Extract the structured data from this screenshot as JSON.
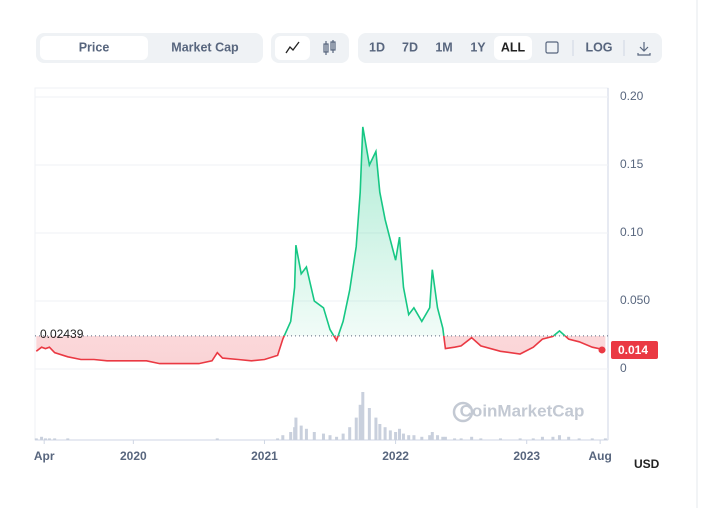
{
  "toolbar": {
    "tabs": [
      "Price",
      "Market Cap"
    ],
    "ranges": [
      "1D",
      "7D",
      "1M",
      "1Y",
      "ALL"
    ],
    "scale": "LOG",
    "currency": "USD",
    "watermark": "CoinMarketCap"
  },
  "chart_data": {
    "type": "line",
    "x": [
      2019.26,
      2019.3,
      2019.33,
      2019.36,
      2019.4,
      2019.5,
      2019.6,
      2019.7,
      2019.8,
      2019.9,
      2020.0,
      2020.1,
      2020.2,
      2020.3,
      2020.4,
      2020.5,
      2020.6,
      2020.64,
      2020.68,
      2020.8,
      2020.9,
      2021.0,
      2021.1,
      2021.14,
      2021.2,
      2021.23,
      2021.24,
      2021.28,
      2021.32,
      2021.38,
      2021.45,
      2021.5,
      2021.55,
      2021.6,
      2021.65,
      2021.7,
      2021.73,
      2021.75,
      2021.8,
      2021.85,
      2021.88,
      2021.92,
      2021.96,
      2022.0,
      2022.03,
      2022.06,
      2022.1,
      2022.14,
      2022.2,
      2022.26,
      2022.28,
      2022.32,
      2022.36,
      2022.38,
      2022.45,
      2022.5,
      2022.58,
      2022.65,
      2022.8,
      2022.95,
      2023.05,
      2023.12,
      2023.2,
      2023.25,
      2023.32,
      2023.4,
      2023.5,
      2023.6
    ],
    "series": [
      {
        "name": "Price",
        "color": "#16c784",
        "values": [
          0.013,
          0.016,
          0.015,
          0.016,
          0.012,
          0.009,
          0.007,
          0.007,
          0.006,
          0.006,
          0.006,
          0.006,
          0.004,
          0.004,
          0.004,
          0.004,
          0.006,
          0.012,
          0.008,
          0.007,
          0.006,
          0.007,
          0.01,
          0.022,
          0.035,
          0.06,
          0.091,
          0.07,
          0.075,
          0.05,
          0.045,
          0.029,
          0.021,
          0.035,
          0.058,
          0.09,
          0.13,
          0.178,
          0.15,
          0.16,
          0.13,
          0.11,
          0.095,
          0.08,
          0.097,
          0.06,
          0.04,
          0.045,
          0.035,
          0.045,
          0.073,
          0.045,
          0.03,
          0.015,
          0.016,
          0.017,
          0.023,
          0.017,
          0.013,
          0.011,
          0.016,
          0.022,
          0.024,
          0.028,
          0.022,
          0.02,
          0.016,
          0.014
        ]
      }
    ],
    "volume": [
      1,
      2,
      1,
      1,
      1,
      1,
      0,
      0,
      0,
      0,
      0,
      0,
      0,
      0,
      0,
      0,
      0,
      1,
      0,
      0,
      0,
      0,
      1,
      3,
      5,
      8,
      14,
      9,
      7,
      5,
      4,
      3,
      2,
      4,
      8,
      14,
      22,
      30,
      20,
      14,
      10,
      8,
      6,
      5,
      7,
      4,
      3,
      3,
      2,
      3,
      5,
      3,
      2,
      2,
      1,
      1,
      2,
      1,
      1,
      1,
      1,
      2,
      2,
      3,
      2,
      1,
      1,
      1
    ],
    "below_color": "#ea3943",
    "baseline": {
      "value": 0.02439,
      "label": "0.02439"
    },
    "last": {
      "value": 0.014,
      "label": "0.014"
    },
    "xlim": [
      2019.25,
      2023.62
    ],
    "xticks": [
      {
        "value": 2019.32,
        "label": "Apr"
      },
      2020,
      2021,
      2022,
      2023,
      {
        "value": 2023.56,
        "label": "Aug"
      }
    ],
    "ylim": [
      0,
      0.2
    ],
    "yticks": [
      0,
      {
        "value": 0.05,
        "label": "0.050"
      },
      {
        "value": 0.1,
        "label": "0.10"
      },
      0.15,
      {
        "value": 0.2,
        "label": "0.20"
      }
    ]
  }
}
